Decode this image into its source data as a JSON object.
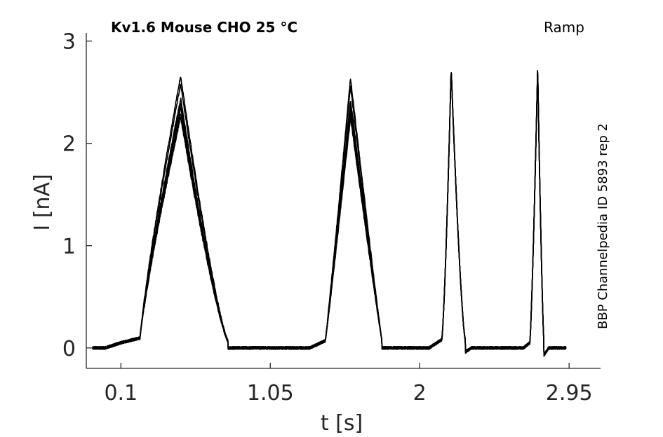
{
  "chart_data": {
    "type": "line",
    "title": "Kv1.6  Mouse  CHO  25 °C",
    "protocol_label": "Ramp",
    "side_label": "BBP Channelpedia ID 5893 rep 2",
    "xlabel": "t [s]",
    "ylabel": "I [nA]",
    "xlim": [
      -0.12,
      3.15
    ],
    "ylim": [
      -0.2,
      3.08
    ],
    "xticks": [
      0.1,
      1.05,
      2,
      2.95
    ],
    "xtick_labels": [
      "0.1",
      "1.05",
      "2",
      "2.95"
    ],
    "yticks": [
      0,
      1,
      2,
      3
    ],
    "ytick_labels": [
      "0",
      "1",
      "2",
      "3"
    ],
    "grid": false,
    "line_color": "#000000",
    "series_peaks": [
      2.26,
      2.3,
      2.35,
      2.4,
      2.44,
      2.58,
      2.66
    ],
    "peaks": {
      "ramp1": {
        "t_start": 0.1,
        "t_rise_end": 0.23,
        "t_peak": 0.48,
        "t_fall_end": 0.78
      },
      "ramp2": {
        "t_start": 1.3,
        "t_rise_end": 1.4,
        "t_peak": 1.56,
        "t_fall_end": 1.76,
        "peak_max": 2.66
      },
      "ramp3": {
        "t_start": 2.14,
        "t_peak": 2.2,
        "t_fall_end": 2.29,
        "peak_max": 2.74
      },
      "ramp4": {
        "t_start": 2.7,
        "t_peak": 2.75,
        "t_fall_end": 2.79,
        "peak_max": 2.74
      }
    }
  }
}
